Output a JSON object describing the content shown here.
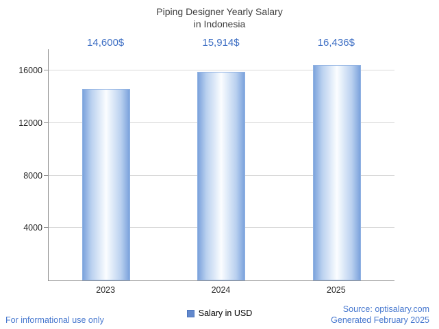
{
  "title": {
    "line1": "Piping Designer Yearly Salary",
    "line2": "in Indonesia"
  },
  "chart_data": {
    "type": "bar",
    "title": "Piping Designer Yearly Salary in Indonesia",
    "categories": [
      "2023",
      "2024",
      "2025"
    ],
    "values": [
      14600,
      15914,
      16436
    ],
    "value_labels": [
      "14,600$",
      "15,914$",
      "16,436$"
    ],
    "series": [
      {
        "name": "Salary in USD",
        "values": [
          14600,
          15914,
          16436
        ]
      }
    ],
    "yticks": [
      4000,
      8000,
      12000,
      16000
    ],
    "ylim": [
      0,
      17616
    ],
    "grid": true,
    "legend_position": "bottom",
    "xlabel": "",
    "ylabel": ""
  },
  "legend": {
    "label": "Salary in USD"
  },
  "footer": {
    "left": "For informational use only",
    "source": "Source: optisalary.com",
    "generated": "Generated February 2025"
  },
  "colors": {
    "value_label_text": "#3e6fc4",
    "footer_text": "#4778cf",
    "bar_edge": "#7ba2dc",
    "bar_center": "#fbfdff",
    "legend_swatch": "#6288cc",
    "grid": "#d7d7d7",
    "axis": "#8c8c8c"
  }
}
